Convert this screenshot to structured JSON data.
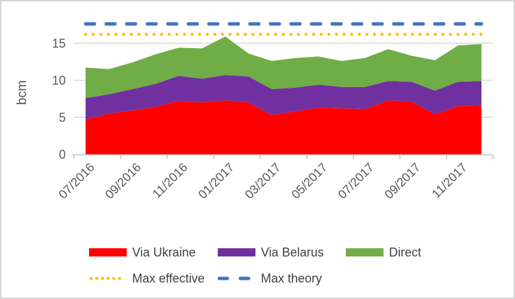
{
  "axis": {
    "y_title": "bcm",
    "y_tick_labels": [
      "0",
      "5",
      "10",
      "15"
    ],
    "x_tick_labels": [
      "07/2016",
      "09/2016",
      "11/2016",
      "01/2017",
      "03/2017",
      "05/2017",
      "07/2017",
      "09/2017",
      "11/2017"
    ],
    "text_color": "#595959",
    "gridline_color": "#D9D9D9",
    "axis_line_color": "#BFBFBF"
  },
  "chart_data": {
    "type": "area",
    "stacked": true,
    "title": "",
    "xlabel": "",
    "ylabel": "bcm",
    "ylim": [
      0,
      18
    ],
    "y_ticks": [
      0,
      5,
      10,
      15
    ],
    "grid": true,
    "legend_position": "bottom",
    "x": [
      "07/2016",
      "08/2016",
      "09/2016",
      "10/2016",
      "11/2016",
      "12/2016",
      "01/2017",
      "02/2017",
      "03/2017",
      "04/2017",
      "05/2017",
      "06/2017",
      "07/2017",
      "08/2017",
      "09/2017",
      "10/2017",
      "11/2017",
      "12/2017"
    ],
    "series": [
      {
        "name": "Via Ukraine",
        "type": "area",
        "color": "#FF0000",
        "values": [
          4.7,
          5.5,
          5.9,
          6.4,
          7.2,
          7.0,
          7.3,
          7.0,
          5.3,
          5.8,
          6.3,
          6.2,
          6.1,
          7.3,
          7.1,
          5.4,
          6.5,
          6.6
        ]
      },
      {
        "name": "Via Belarus",
        "type": "area",
        "color": "#7030A0",
        "values": [
          2.9,
          2.6,
          2.9,
          3.1,
          3.4,
          3.2,
          3.4,
          3.5,
          3.5,
          3.2,
          3.1,
          2.9,
          3.0,
          2.6,
          2.7,
          3.2,
          3.3,
          3.3
        ]
      },
      {
        "name": "Direct",
        "type": "area",
        "color": "#70AD47",
        "values": [
          4.1,
          3.4,
          3.6,
          4.0,
          3.8,
          4.1,
          5.2,
          3.1,
          3.8,
          4.0,
          3.8,
          3.5,
          3.9,
          4.3,
          3.5,
          4.1,
          4.9,
          5.0
        ]
      },
      {
        "name": "Max effective",
        "type": "line",
        "line_style": "dotted",
        "color": "#FFC000",
        "value": 16.2
      },
      {
        "name": "Max theory",
        "type": "line",
        "line_style": "dashed",
        "color": "#4472C4",
        "value": 17.6
      }
    ]
  }
}
